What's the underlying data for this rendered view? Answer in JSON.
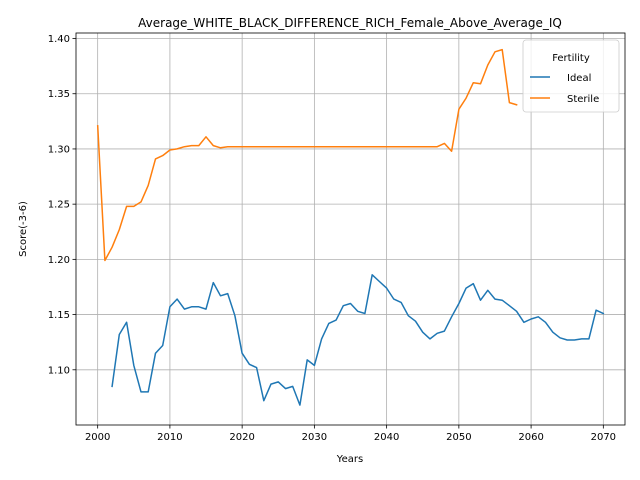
{
  "chart_data": {
    "type": "line",
    "title": "Average_WHITE_BLACK_DIFFERENCE_RICH_Female_Above_Average_IQ",
    "xlabel": "Years",
    "ylabel": "Score(-3-6)",
    "xlim": [
      1997,
      2073
    ],
    "ylim": [
      1.05,
      1.405
    ],
    "xticks": [
      2000,
      2010,
      2020,
      2030,
      2040,
      2050,
      2060,
      2070
    ],
    "yticks": [
      1.1,
      1.15,
      1.2,
      1.25,
      1.3,
      1.35,
      1.4
    ],
    "ytick_labels": [
      "1.10",
      "1.15",
      "1.20",
      "1.25",
      "1.30",
      "1.35",
      "1.40"
    ],
    "grid": true,
    "legend": {
      "title": "Fertility",
      "placement": "top-right"
    },
    "series": [
      {
        "name": "Ideal",
        "color": "#1f77b4",
        "x": [
          2002,
          2003,
          2004,
          2005,
          2006,
          2007,
          2008,
          2009,
          2010,
          2011,
          2012,
          2013,
          2014,
          2015,
          2016,
          2017,
          2018,
          2019,
          2020,
          2021,
          2022,
          2023,
          2024,
          2025,
          2026,
          2027,
          2028,
          2029,
          2030,
          2031,
          2032,
          2033,
          2034,
          2035,
          2036,
          2037,
          2038,
          2039,
          2040,
          2041,
          2042,
          2043,
          2044,
          2045,
          2046,
          2047,
          2048,
          2049,
          2050,
          2051,
          2052,
          2053,
          2054,
          2055,
          2056,
          2057,
          2058,
          2059,
          2060,
          2061,
          2062,
          2063,
          2064,
          2065,
          2066,
          2067,
          2068,
          2069,
          2070
        ],
        "y": [
          1.085,
          1.132,
          1.143,
          1.104,
          1.08,
          1.08,
          1.115,
          1.122,
          1.157,
          1.164,
          1.155,
          1.157,
          1.157,
          1.155,
          1.179,
          1.167,
          1.169,
          1.149,
          1.115,
          1.105,
          1.102,
          1.072,
          1.087,
          1.089,
          1.083,
          1.085,
          1.068,
          1.109,
          1.104,
          1.128,
          1.142,
          1.145,
          1.158,
          1.16,
          1.153,
          1.151,
          1.186,
          1.18,
          1.174,
          1.164,
          1.161,
          1.149,
          1.144,
          1.134,
          1.128,
          1.133,
          1.135,
          1.148,
          1.16,
          1.174,
          1.178,
          1.163,
          1.172,
          1.164,
          1.163,
          1.158,
          1.153,
          1.143,
          1.146,
          1.148,
          1.143,
          1.134,
          1.129,
          1.127,
          1.127,
          1.128,
          1.128,
          1.154,
          1.151
        ]
      },
      {
        "name": "Sterile",
        "color": "#ff7f0e",
        "x": [
          2000,
          2001,
          2002,
          2003,
          2004,
          2005,
          2006,
          2007,
          2008,
          2009,
          2010,
          2011,
          2012,
          2013,
          2014,
          2015,
          2016,
          2017,
          2018,
          2019,
          2020,
          2021,
          2022,
          2023,
          2024,
          2025,
          2026,
          2027,
          2028,
          2029,
          2030,
          2031,
          2032,
          2033,
          2034,
          2035,
          2036,
          2037,
          2038,
          2039,
          2040,
          2041,
          2042,
          2043,
          2044,
          2045,
          2046,
          2047,
          2048,
          2049,
          2050,
          2051,
          2052,
          2053,
          2054,
          2055,
          2056,
          2057,
          2058
        ],
        "y": [
          1.321,
          1.199,
          1.211,
          1.227,
          1.248,
          1.248,
          1.252,
          1.267,
          1.291,
          1.294,
          1.299,
          1.3,
          1.302,
          1.303,
          1.303,
          1.311,
          1.303,
          1.301,
          1.302,
          1.302,
          1.302,
          1.302,
          1.302,
          1.302,
          1.302,
          1.302,
          1.302,
          1.302,
          1.302,
          1.302,
          1.302,
          1.302,
          1.302,
          1.302,
          1.302,
          1.302,
          1.302,
          1.302,
          1.302,
          1.302,
          1.302,
          1.302,
          1.302,
          1.302,
          1.302,
          1.302,
          1.302,
          1.302,
          1.305,
          1.298,
          1.336,
          1.346,
          1.36,
          1.359,
          1.376,
          1.388,
          1.39,
          1.342,
          1.34
        ]
      }
    ]
  }
}
